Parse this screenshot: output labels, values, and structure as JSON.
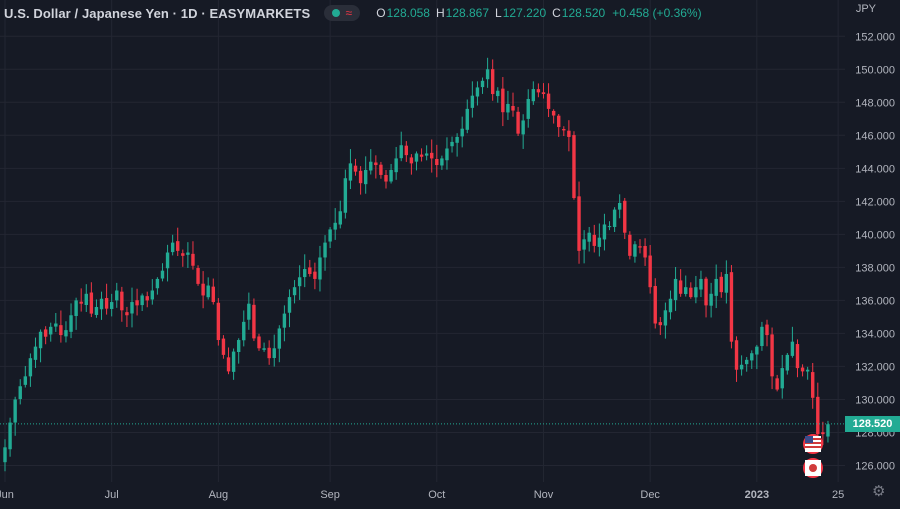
{
  "header": {
    "title": "U.S. Dollar / Japanese Yen · 1D · EASYMARKETS",
    "ohlc": {
      "o_label": "O",
      "o": "128.058",
      "h_label": "H",
      "h": "128.867",
      "l_label": "L",
      "l": "127.220",
      "c_label": "C",
      "c": "128.520",
      "change": "+0.458 (+0.36%)"
    }
  },
  "axis": {
    "currency": "JPY",
    "last_price": "128.520"
  },
  "colors": {
    "up": "#22ab94",
    "down": "#f23645",
    "background": "#161a25",
    "grid": "#232632",
    "text": "#b2b5be"
  },
  "chart_data": {
    "type": "candlestick",
    "ylim": [
      125,
      152.5
    ],
    "y_ticks": [
      126,
      128,
      130,
      132,
      134,
      136,
      138,
      140,
      142,
      144,
      146,
      148,
      150,
      152
    ],
    "x_ticks": [
      "Jun",
      "Jul",
      "Aug",
      "Sep",
      "Oct",
      "Nov",
      "Dec",
      "2023",
      "25"
    ],
    "x_tick_positions": [
      0,
      21,
      42,
      64,
      85,
      106,
      127,
      148,
      164
    ],
    "last_price": 128.52,
    "grid": true,
    "closes": [
      127.1,
      128.6,
      130.0,
      130.8,
      131.4,
      132.5,
      133.2,
      134.1,
      133.8,
      134.4,
      134.6,
      133.9,
      134.2,
      135.1,
      136.0,
      135.8,
      136.4,
      135.2,
      135.6,
      136.1,
      135.5,
      135.9,
      136.6,
      135.4,
      135.1,
      135.9,
      135.7,
      136.3,
      136.0,
      136.6,
      137.3,
      137.8,
      138.9,
      139.5,
      139.0,
      138.7,
      138.9,
      138.1,
      137.0,
      136.3,
      136.9,
      135.9,
      133.6,
      132.7,
      131.7,
      132.9,
      133.6,
      134.7,
      135.8,
      133.7,
      133.1,
      133.1,
      132.5,
      133.1,
      134.3,
      135.2,
      136.2,
      136.8,
      137.4,
      137.9,
      137.6,
      137.3,
      138.6,
      139.5,
      140.3,
      140.7,
      141.4,
      143.4,
      144.3,
      143.8,
      143.1,
      143.9,
      144.4,
      144.2,
      143.6,
      143.2,
      143.9,
      144.6,
      145.4,
      144.8,
      144.3,
      144.9,
      144.7,
      144.9,
      144.6,
      144.2,
      144.6,
      145.2,
      145.6,
      145.9,
      146.4,
      147.6,
      148.4,
      148.9,
      149.3,
      150.0,
      148.5,
      148.7,
      147.4,
      147.9,
      147.5,
      146.1,
      146.9,
      148.2,
      148.8,
      148.6,
      148.5,
      147.6,
      147.2,
      146.5,
      146.3,
      145.9,
      142.2,
      139.0,
      139.7,
      140.1,
      139.3,
      139.8,
      140.6,
      140.5,
      141.5,
      141.9,
      140.1,
      138.7,
      139.4,
      139.2,
      138.6,
      136.8,
      134.6,
      134.5,
      135.4,
      136.1,
      137.3,
      136.4,
      136.8,
      136.2,
      136.8,
      137.3,
      135.7,
      136.4,
      137.3,
      136.5,
      137.6,
      133.5,
      131.8,
      132.1,
      132.4,
      132.8,
      133.2,
      134.4,
      133.9,
      131.4,
      130.6,
      131.9,
      132.7,
      133.5,
      131.9,
      131.7,
      131.8,
      130.1,
      127.9,
      127.9,
      128.5
    ]
  }
}
